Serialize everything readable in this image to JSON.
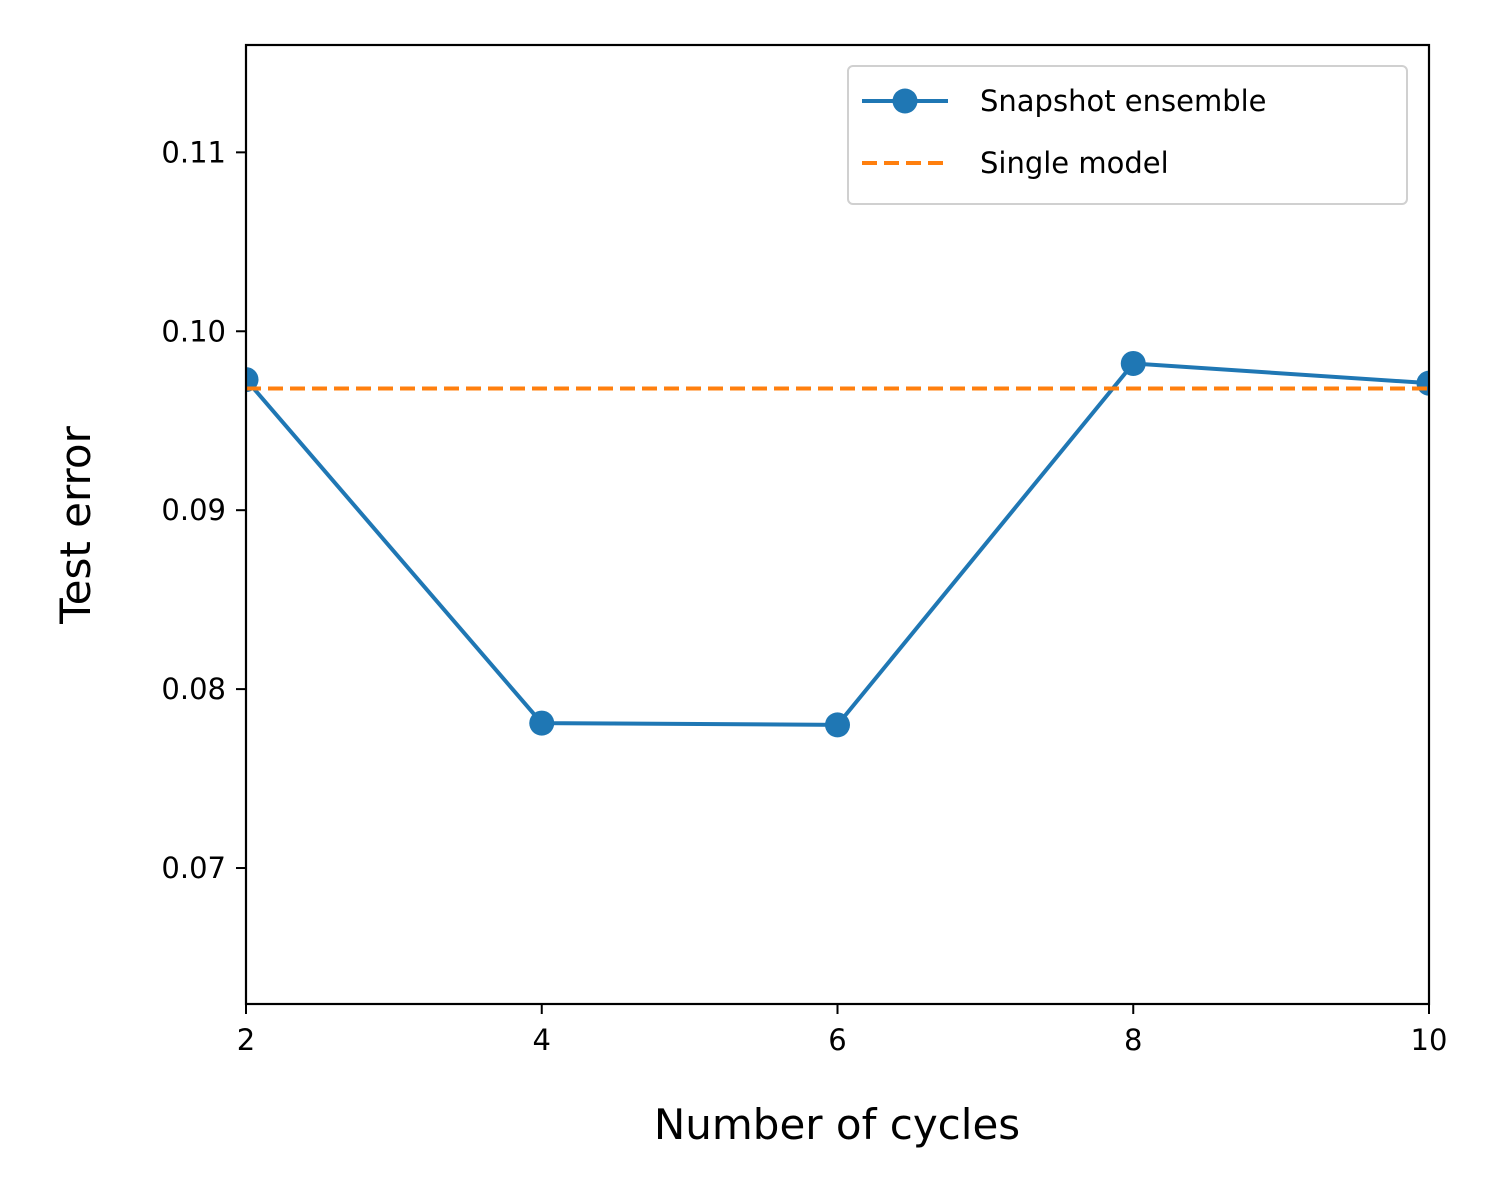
{
  "chart_data": {
    "type": "line",
    "title": "",
    "xlabel": "Number of cycles",
    "ylabel": "Test error",
    "xlim": [
      2,
      10
    ],
    "ylim": [
      0.0624,
      0.116
    ],
    "x_ticks": [
      2,
      4,
      6,
      8,
      10
    ],
    "x_tick_labels": [
      "2",
      "4",
      "6",
      "8",
      "10"
    ],
    "y_ticks": [
      0.07,
      0.08,
      0.09,
      0.1,
      0.11
    ],
    "y_tick_labels": [
      "0.07",
      "0.08",
      "0.09",
      "0.10",
      "0.11"
    ],
    "grid": false,
    "legend_position": "top-right",
    "series": [
      {
        "name": "Snapshot ensemble",
        "style": "solid-with-markers",
        "color": "#1f77b4",
        "x": [
          2,
          4,
          6,
          8,
          10
        ],
        "y": [
          0.0973,
          0.0781,
          0.078,
          0.0982,
          0.0971
        ]
      },
      {
        "name": "Single model",
        "style": "dashed",
        "color": "#ff7f0e",
        "x": [
          2,
          10
        ],
        "y": [
          0.0968,
          0.0968
        ]
      }
    ]
  }
}
